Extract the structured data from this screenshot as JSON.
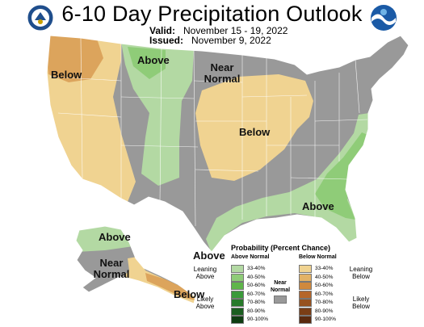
{
  "title": "6-10 Day Precipitation Outlook",
  "valid_label": "Valid:",
  "valid_value": "November 15 - 19, 2022",
  "issued_label": "Issued:",
  "issued_value": "November 9, 2022",
  "map_labels": {
    "below_nw": "Below",
    "above_north": "Above",
    "near_normal_north": "Near Normal",
    "below_midwest": "Below",
    "above_southeast": "Above",
    "above_south_texas": "Above",
    "alaska_above": "Above",
    "alaska_near_normal": "Near Normal",
    "alaska_below": "Below"
  },
  "legend": {
    "title": "Probability (Percent Chance)",
    "above_header": "Above Normal",
    "below_header": "Below Normal",
    "near_label": "Near Normal",
    "leaning_above": "Leaning Above",
    "likely_above": "Likely Above",
    "leaning_below": "Leaning Below",
    "likely_below": "Likely Below",
    "ranges": [
      "33-40%",
      "40-50%",
      "50-60%",
      "60-70%",
      "70-80%",
      "80-90%",
      "90-100%"
    ],
    "above_colors": [
      "#b3d9a3",
      "#8fcc78",
      "#5fb54a",
      "#3a9a3a",
      "#277a2a",
      "#1b5e20",
      "#0f3d12"
    ],
    "below_colors": [
      "#f0d391",
      "#e3b266",
      "#d0893d",
      "#b5662a",
      "#97521f",
      "#7a3e16",
      "#5a2a0f"
    ],
    "near_color": "#999999"
  },
  "colors": {
    "below_light": "#f0d391",
    "below_medium": "#dca45c",
    "above_light": "#b3d9a3",
    "above_medium": "#8fcc78",
    "near_normal": "#999999"
  }
}
